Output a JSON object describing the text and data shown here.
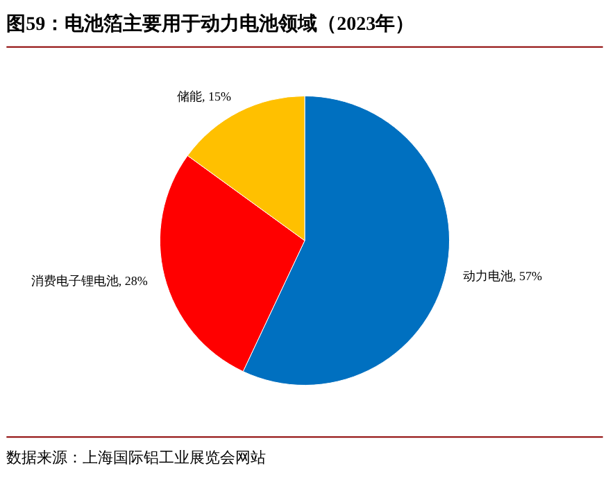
{
  "chart_data": {
    "type": "pie",
    "title": "图59：电池箔主要用于动力电池领域（2023年）",
    "categories": [
      "动力电池",
      "消费电子锂电池",
      "储能"
    ],
    "values": [
      57,
      28,
      15
    ],
    "value_labels": [
      "57%",
      "28%",
      "15%"
    ],
    "colors": [
      "#0070c0",
      "#ff0000",
      "#ffc000"
    ],
    "annotations": [
      "数据来源：上海国际铝工业展览会网站"
    ]
  }
}
